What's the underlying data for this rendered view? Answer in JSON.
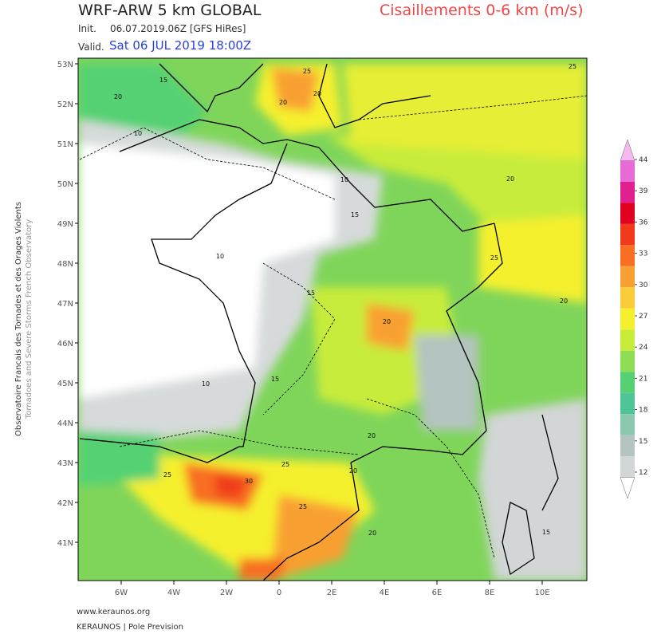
{
  "header": {
    "model_title": "WRF-ARW 5 km GLOBAL",
    "init_label": "Init.",
    "init_value": "06.07.2019.06Z [GFS HiRes]",
    "valid_label": "Valid.",
    "valid_value": "Sat 06 JUL 2019 18:00Z",
    "parameter": "Cisaillements 0-6 km (m/s)"
  },
  "map": {
    "lat_ticks": [
      "53N",
      "52N",
      "51N",
      "50N",
      "49N",
      "48N",
      "47N",
      "46N",
      "45N",
      "44N",
      "43N",
      "42N",
      "41N"
    ],
    "lon_ticks": [
      "6W",
      "4W",
      "2W",
      "0",
      "2E",
      "4E",
      "6E",
      "8E",
      "10E"
    ],
    "contour_labels": [
      "25",
      "15",
      "20",
      "10",
      "25",
      "20",
      "20",
      "10",
      "15",
      "10",
      "15",
      "20",
      "20",
      "25",
      "20",
      "10",
      "15",
      "20",
      "25",
      "30",
      "25",
      "20",
      "25",
      "20",
      "15"
    ]
  },
  "colorbar": {
    "ticks": [
      44,
      39,
      36,
      33,
      30,
      27,
      24,
      21,
      18,
      15,
      12
    ],
    "colors": [
      "#f7b8f0",
      "#e76ad6",
      "#e0208f",
      "#e0001f",
      "#f03a1b",
      "#f86e23",
      "#f9a033",
      "#fbcc3a",
      "#f5f02d",
      "#c8ec3a",
      "#8fdc55",
      "#55d173",
      "#4fc497",
      "#8cc7b0",
      "#b4c4c0",
      "#d2d6d6",
      "#ffffff"
    ]
  },
  "side": {
    "line1": "Observatoire Francais des Tornades et des Orages Violents",
    "line2": "Tornadoes and Severe Storms French Observatory"
  },
  "footer": {
    "site": "www.keraunos.org",
    "credit": "KERAUNOS | Pole Prevision"
  }
}
